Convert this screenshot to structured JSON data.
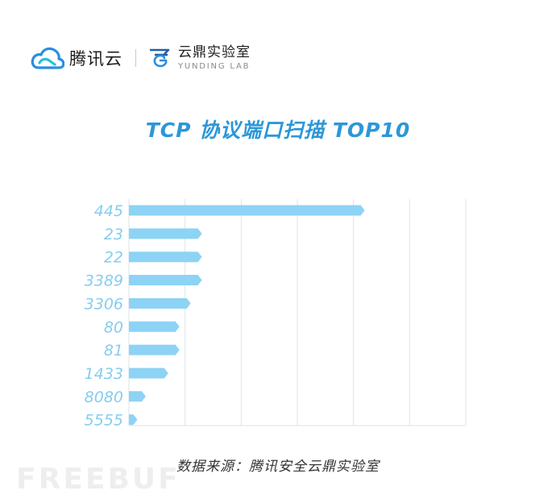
{
  "header": {
    "brand_name": "腾讯云",
    "lab_name_cn": "云鼎实验室",
    "lab_name_en": "YUNDING LAB",
    "brand_icon": "tencent-cloud-logo",
    "lab_icon": "yunding-lab-logo"
  },
  "chart_data": {
    "type": "bar",
    "orientation": "horizontal",
    "title": "TCP 协议端口扫描 TOP10",
    "categories": [
      "445",
      "23",
      "22",
      "3389",
      "3306",
      "80",
      "81",
      "1433",
      "8080",
      "5555"
    ],
    "values": [
      42,
      13,
      13,
      13,
      11,
      9,
      9,
      7,
      3,
      1.5
    ],
    "xlim": [
      0,
      60
    ],
    "xlabel": "",
    "ylabel": "",
    "grid": true,
    "colors": {
      "bar": "#8dd3f5",
      "tick_label": "#86cdef",
      "grid": "#dde3ea"
    }
  },
  "footer": {
    "source": "数据来源：腾讯安全云鼎实验室",
    "watermark": "FREEBUF"
  }
}
